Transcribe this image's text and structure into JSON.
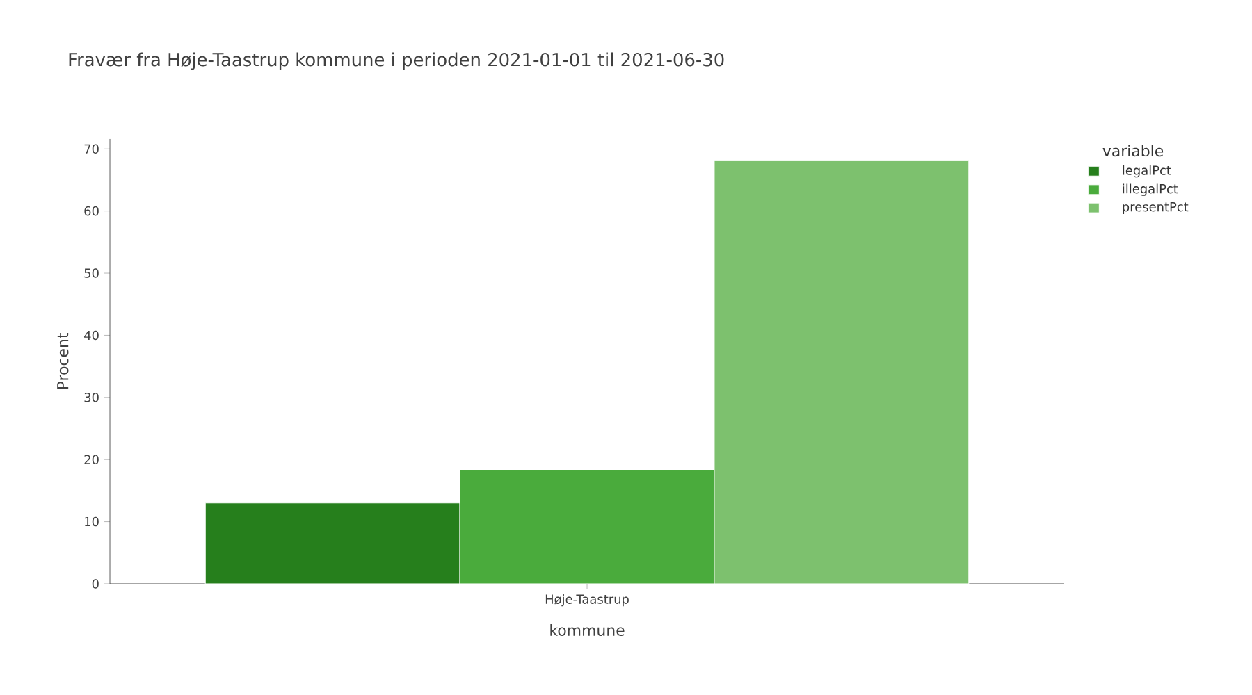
{
  "chart_data": {
    "type": "bar",
    "title": "Fravær fra Høje-Taastrup kommune i perioden 2021-01-01 til 2021-06-30",
    "xlabel": "kommune",
    "ylabel": "Procent",
    "legend_title": "variable",
    "legend": "top right",
    "categories": [
      "Høje-Taastrup"
    ],
    "series": [
      {
        "name": "legalPct",
        "color": "#267f1c",
        "values": [
          13.0
        ]
      },
      {
        "name": "illegalPct",
        "color": "#4aab3c",
        "values": [
          18.4
        ]
      },
      {
        "name": "presentPct",
        "color": "#7dc16e",
        "values": [
          68.2
        ]
      }
    ],
    "ylim": [
      0,
      71.6
    ],
    "yticks": [
      0,
      10,
      20,
      30,
      40,
      50,
      60,
      70
    ]
  }
}
